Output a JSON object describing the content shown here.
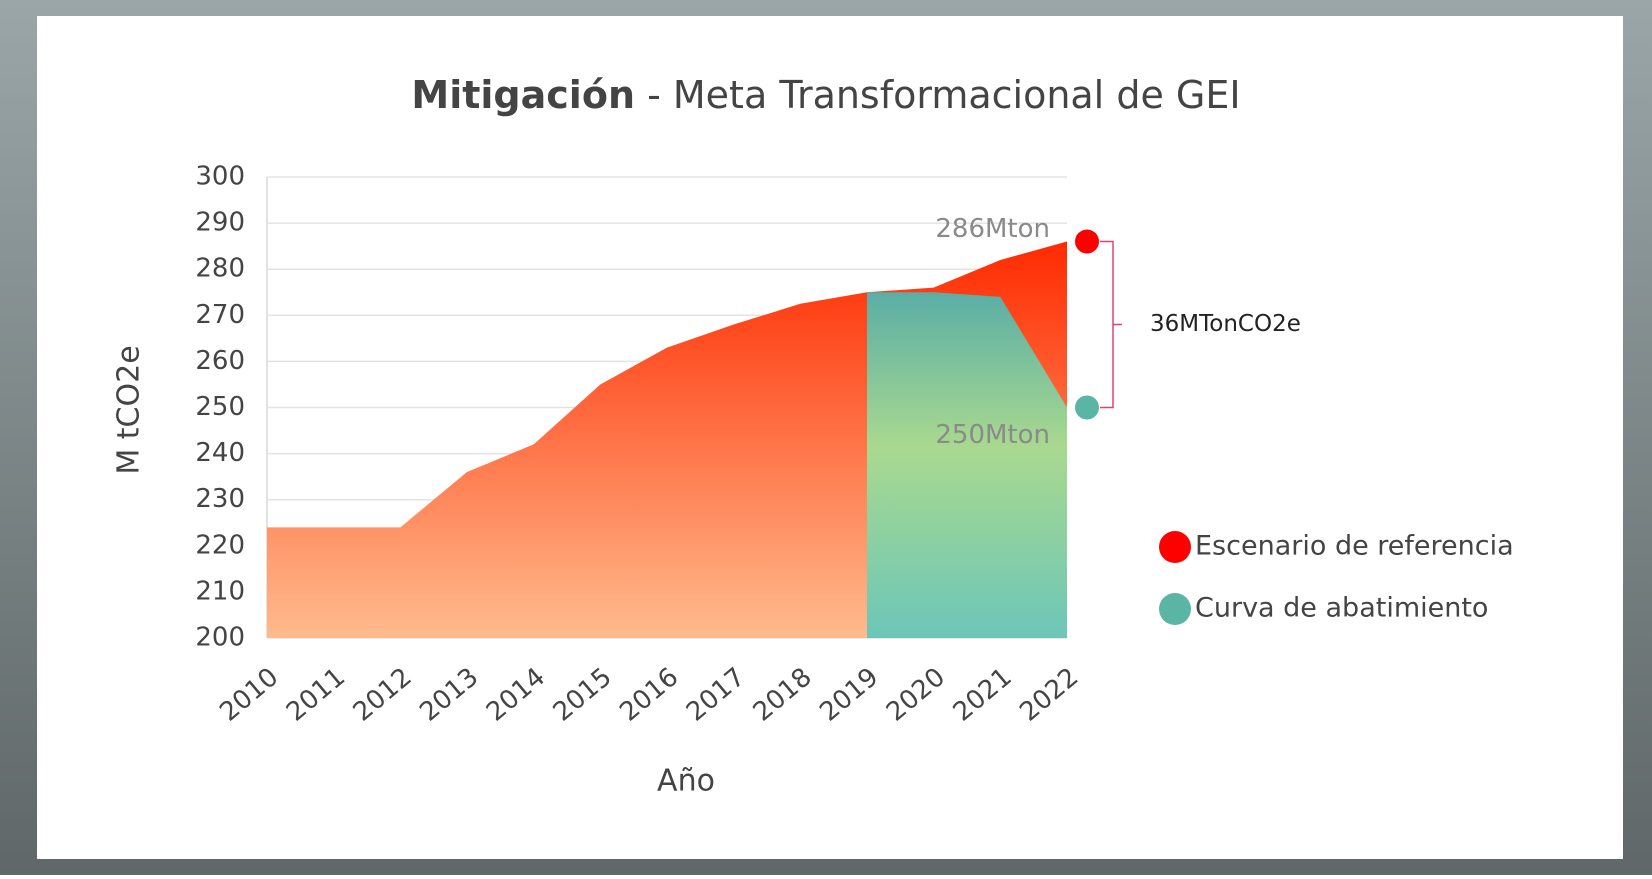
{
  "chart_data": {
    "type": "area",
    "title_emphasis": "Mitigación",
    "title": "- Meta Transformacional de GEI",
    "y_label": "M tCO2e",
    "x_label": "Año",
    "categories": [
      "2010",
      "2011",
      "2012",
      "2013",
      "2014",
      "2015",
      "2016",
      "2017",
      "2018",
      "2019",
      "2020",
      "2021",
      "2022"
    ],
    "series": [
      {
        "name": "Escenario de referencia",
        "color": "#ff0000",
        "values": [
          224,
          224,
          224,
          236,
          242,
          255,
          263,
          268,
          272.5,
          275,
          276,
          282,
          286
        ]
      },
      {
        "name": "Curva de abatimiento",
        "color": "#5ab5a5",
        "values": [
          null,
          null,
          null,
          null,
          null,
          null,
          null,
          null,
          null,
          275,
          275,
          274,
          250
        ]
      }
    ],
    "annotations": [
      "286Mton",
      "250Mton",
      "36MTonCO2e"
    ],
    "ylim": [
      200,
      300
    ],
    "yticks": [
      200,
      210,
      220,
      230,
      240,
      250,
      260,
      270,
      280,
      290,
      300
    ],
    "grid": true,
    "legend": "right"
  }
}
